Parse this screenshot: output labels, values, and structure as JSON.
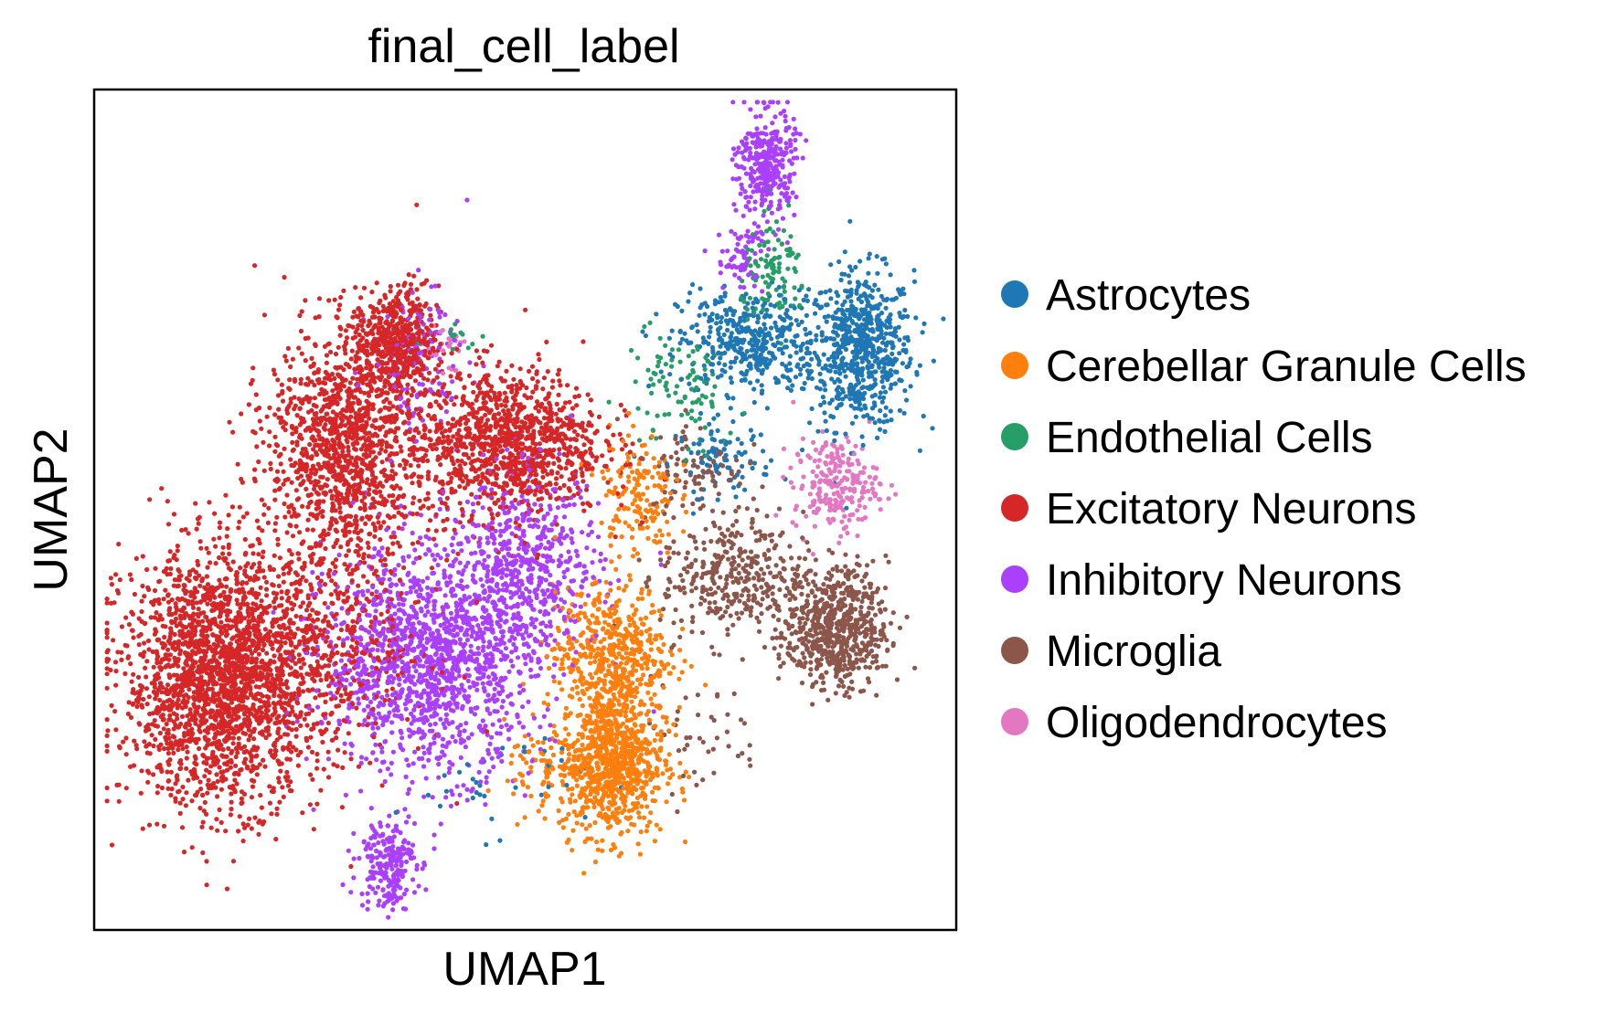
{
  "chart_data": {
    "type": "scatter",
    "title": "final_cell_label",
    "xlabel": "UMAP1",
    "ylabel": "UMAP2",
    "xlim": [
      0,
      10
    ],
    "ylim": [
      0,
      10
    ],
    "grid": false,
    "legend_position": "right",
    "series": [
      {
        "name": "Astrocytes",
        "color": "#1f77b4",
        "clusters": [
          {
            "cx": 8.9,
            "cy": 6.9,
            "rx": 0.55,
            "ry": 0.85,
            "n": 650
          },
          {
            "cx": 7.6,
            "cy": 7.0,
            "rx": 0.75,
            "ry": 0.55,
            "n": 420
          },
          {
            "cx": 7.3,
            "cy": 5.6,
            "rx": 0.5,
            "ry": 0.4,
            "n": 90
          },
          {
            "cx": 4.6,
            "cy": 1.8,
            "rx": 1.0,
            "ry": 0.6,
            "n": 35
          }
        ]
      },
      {
        "name": "Cerebellar Granule Cells",
        "color": "#ff7f0e",
        "clusters": [
          {
            "cx": 6.0,
            "cy": 2.0,
            "rx": 0.55,
            "ry": 0.8,
            "n": 850
          },
          {
            "cx": 6.0,
            "cy": 3.3,
            "rx": 0.6,
            "ry": 0.7,
            "n": 500
          },
          {
            "cx": 6.3,
            "cy": 5.2,
            "rx": 0.4,
            "ry": 0.7,
            "n": 160
          },
          {
            "cx": 5.2,
            "cy": 1.9,
            "rx": 0.4,
            "ry": 0.5,
            "n": 70
          }
        ]
      },
      {
        "name": "Endothelial Cells",
        "color": "#279e68",
        "clusters": [
          {
            "cx": 7.9,
            "cy": 7.8,
            "rx": 0.35,
            "ry": 0.55,
            "n": 110
          },
          {
            "cx": 6.8,
            "cy": 6.4,
            "rx": 0.6,
            "ry": 0.7,
            "n": 100
          },
          {
            "cx": 4.2,
            "cy": 7.1,
            "rx": 0.3,
            "ry": 0.2,
            "n": 12
          }
        ]
      },
      {
        "name": "Excitatory Neurons",
        "color": "#d62728",
        "clusters": [
          {
            "cx": 1.5,
            "cy": 3.0,
            "rx": 1.05,
            "ry": 1.35,
            "n": 2300
          },
          {
            "cx": 2.9,
            "cy": 5.8,
            "rx": 0.8,
            "ry": 1.2,
            "n": 1200
          },
          {
            "cx": 3.5,
            "cy": 7.0,
            "rx": 0.45,
            "ry": 0.6,
            "n": 500
          },
          {
            "cx": 4.8,
            "cy": 5.8,
            "rx": 1.0,
            "ry": 0.8,
            "n": 1100
          },
          {
            "cx": 2.8,
            "cy": 3.5,
            "rx": 1.0,
            "ry": 1.2,
            "n": 420
          }
        ]
      },
      {
        "name": "Inhibitory Neurons",
        "color": "#aa40fc",
        "clusters": [
          {
            "cx": 3.9,
            "cy": 3.2,
            "rx": 1.1,
            "ry": 1.2,
            "n": 1400
          },
          {
            "cx": 5.0,
            "cy": 4.3,
            "rx": 0.8,
            "ry": 1.0,
            "n": 600
          },
          {
            "cx": 3.4,
            "cy": 0.8,
            "rx": 0.3,
            "ry": 0.5,
            "n": 220
          },
          {
            "cx": 7.8,
            "cy": 9.1,
            "rx": 0.3,
            "ry": 0.6,
            "n": 330
          },
          {
            "cx": 7.5,
            "cy": 8.0,
            "rx": 0.25,
            "ry": 0.4,
            "n": 70
          },
          {
            "cx": 3.8,
            "cy": 6.8,
            "rx": 0.5,
            "ry": 0.8,
            "n": 120
          }
        ]
      },
      {
        "name": "Microglia",
        "color": "#8c564b",
        "clusters": [
          {
            "cx": 8.6,
            "cy": 3.6,
            "rx": 0.55,
            "ry": 0.65,
            "n": 650
          },
          {
            "cx": 7.4,
            "cy": 4.2,
            "rx": 0.75,
            "ry": 0.7,
            "n": 350
          },
          {
            "cx": 7.0,
            "cy": 5.5,
            "rx": 0.5,
            "ry": 0.5,
            "n": 90
          },
          {
            "cx": 7.0,
            "cy": 2.3,
            "rx": 0.7,
            "ry": 0.6,
            "n": 45
          }
        ]
      },
      {
        "name": "Oligodendrocytes",
        "color": "#e377c2",
        "clusters": [
          {
            "cx": 8.6,
            "cy": 5.3,
            "rx": 0.45,
            "ry": 0.5,
            "n": 230
          },
          {
            "cx": 4.1,
            "cy": 6.9,
            "rx": 0.2,
            "ry": 0.4,
            "n": 25
          }
        ]
      }
    ]
  }
}
